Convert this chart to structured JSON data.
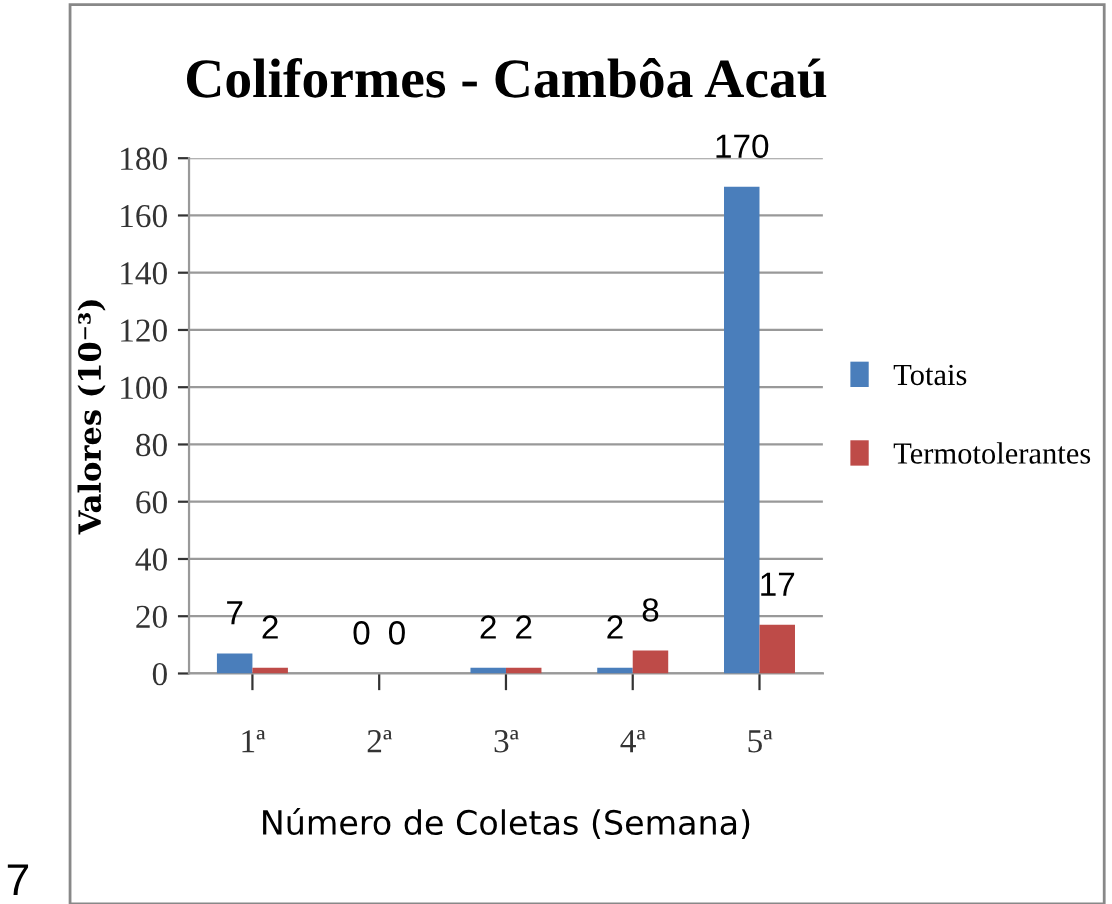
{
  "chart_data": {
    "type": "bar",
    "title": "Coliformes - Cambôa Acaú",
    "xlabel": "Número de Coletas (Semana)",
    "ylabel": "Valores (10⁻³)",
    "categories": [
      "1ª",
      "2ª",
      "3ª",
      "4ª",
      "5ª"
    ],
    "series": [
      {
        "name": "Totais",
        "color": "#4a7ebb",
        "values": [
          7,
          0,
          2,
          2,
          170
        ]
      },
      {
        "name": "Termotolerantes",
        "color": "#be4b48",
        "values": [
          2,
          0,
          2,
          8,
          17
        ]
      }
    ],
    "ylim": [
      0,
      180
    ],
    "yticks": [
      0,
      20,
      40,
      60,
      80,
      100,
      120,
      140,
      160,
      180
    ],
    "grid": "y",
    "legend": "right",
    "data_labels": true,
    "annotations": [
      "7"
    ]
  }
}
